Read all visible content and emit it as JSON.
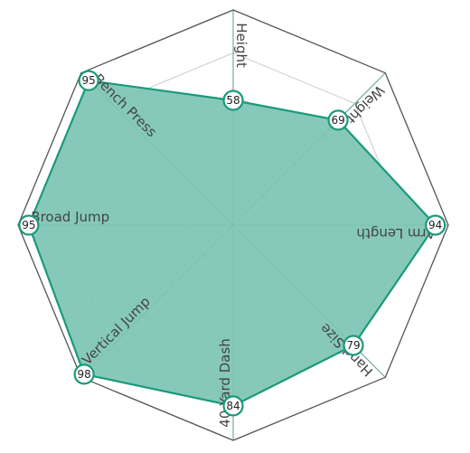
{
  "chart_data": {
    "type": "radar",
    "max": 100,
    "rings": 5,
    "axes": [
      "Height",
      "Weight",
      "Arm Length",
      "Hand Size",
      "40 Yard Dash",
      "Vertical Jump",
      "Broad Jump",
      "Bench Press"
    ],
    "values": [
      58,
      69,
      94,
      79,
      84,
      98,
      95,
      95
    ],
    "colors": {
      "fill": "#7cc4b4",
      "stroke": "#1a9a7a",
      "outline": "#555555",
      "grid": "#cccccc",
      "spoke": "#3b8a78"
    }
  }
}
